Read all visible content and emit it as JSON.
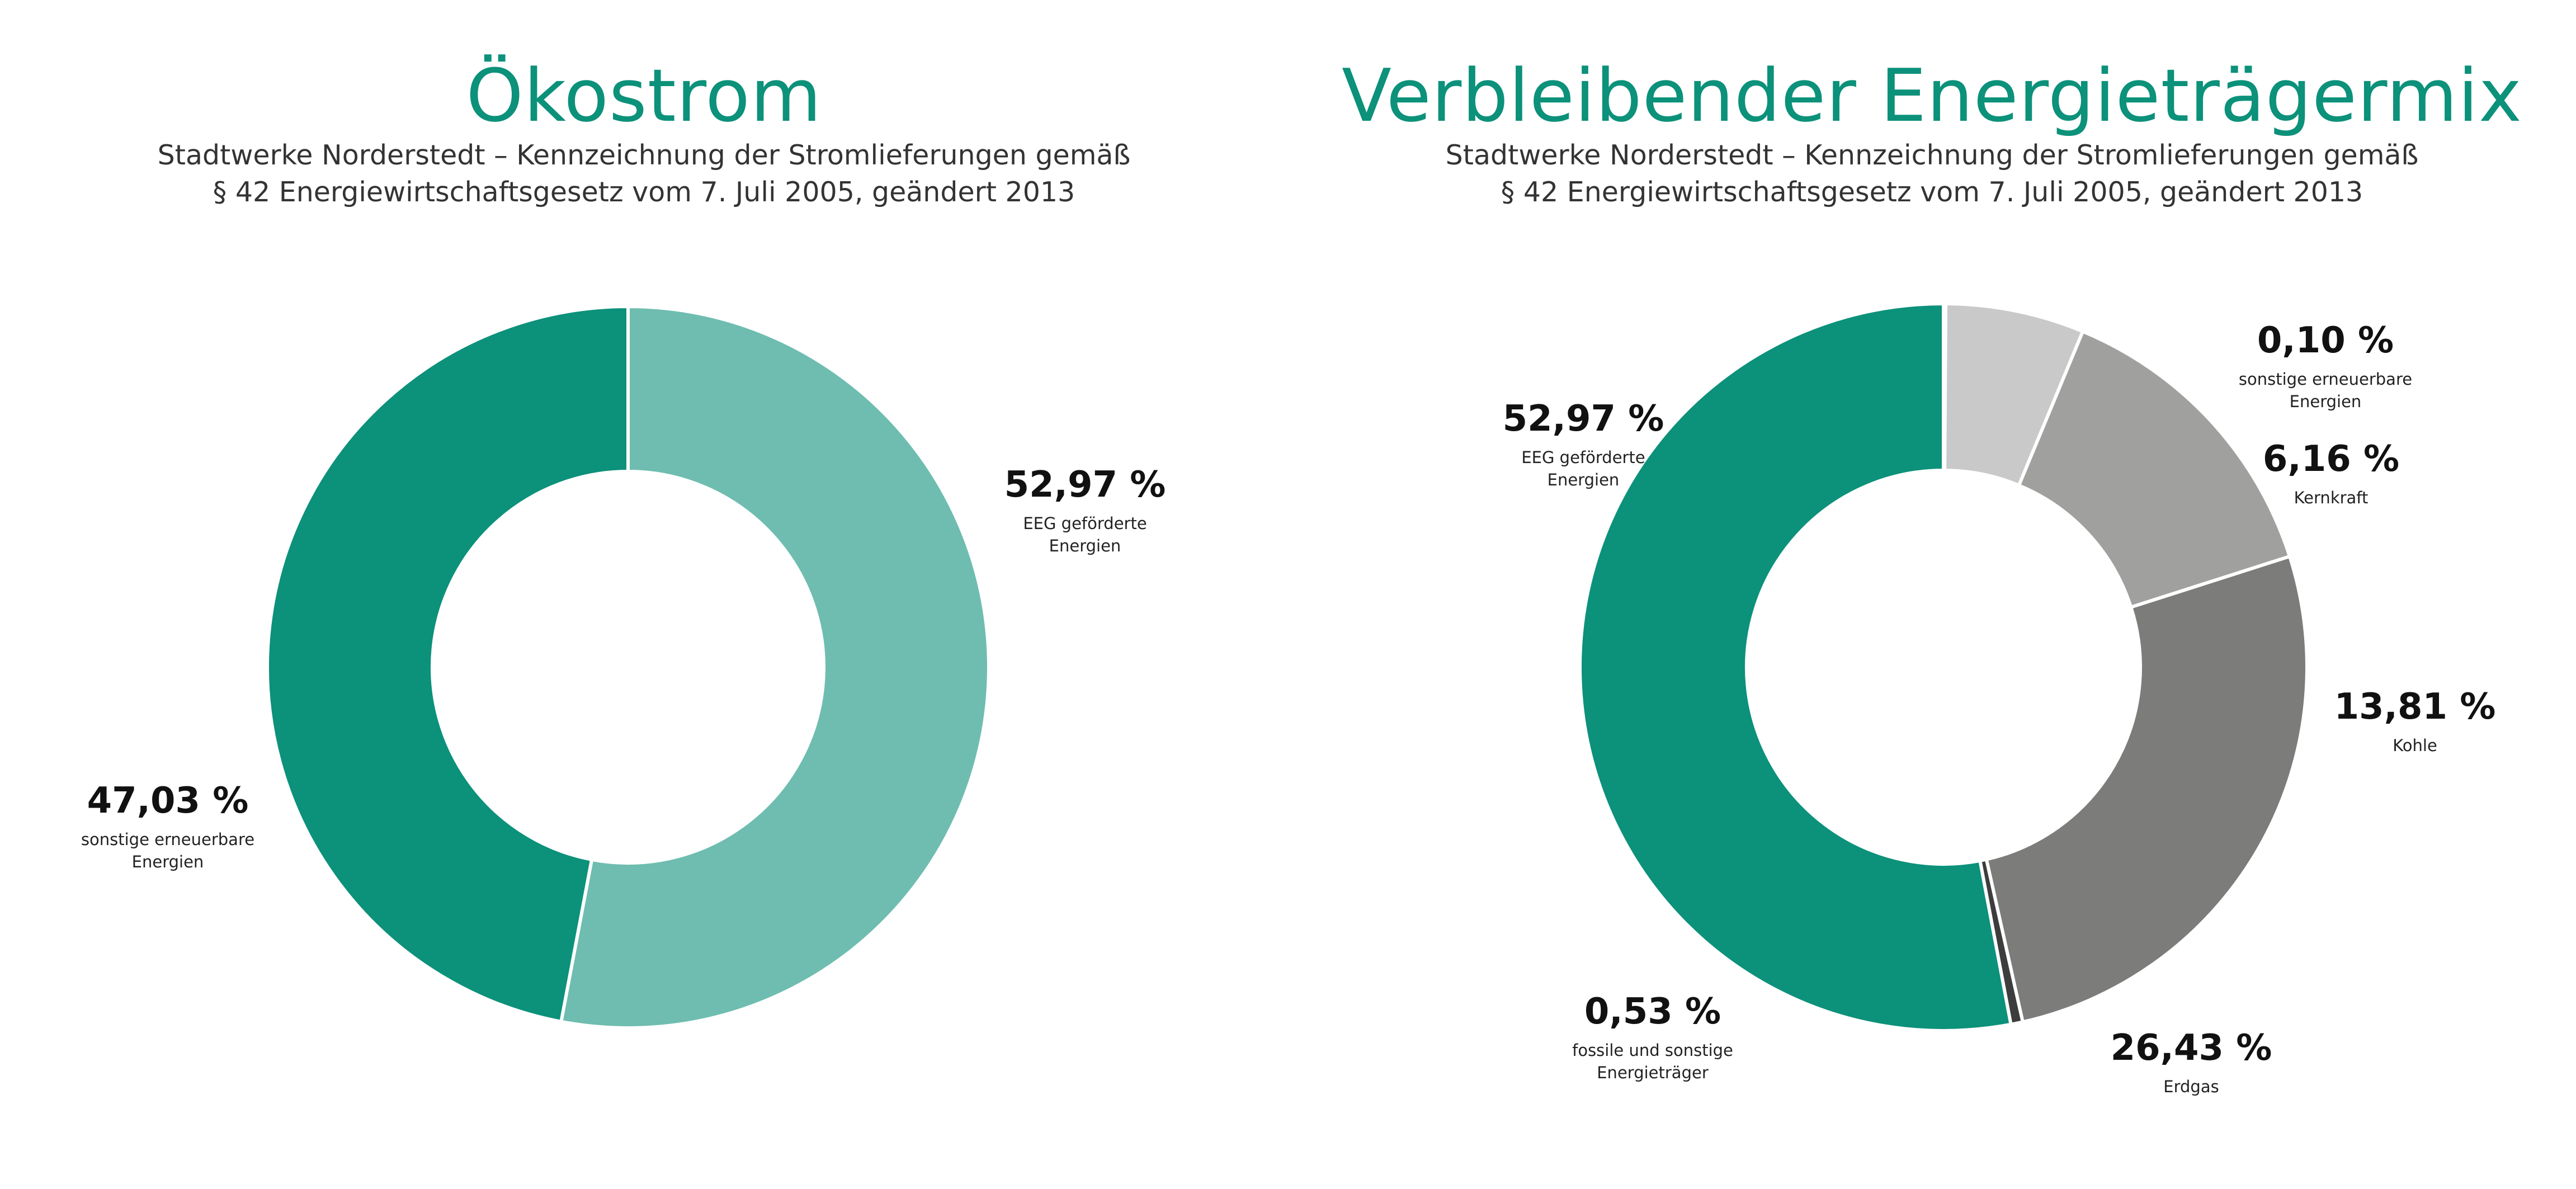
{
  "chart_data": [
    {
      "type": "pie",
      "title": "Ökostrom",
      "subtitle": [
        "Stadtwerke Norderstedt – Kennzeichnung der Stromlieferungen gemäß",
        "§ 42 Energiewirtschaftsgesetz vom 7. Juli 2005, geändert 2013"
      ],
      "slices": [
        {
          "value": 52.97,
          "value_label": "52,97 %",
          "label": [
            "EEG geförderte",
            "Energien"
          ],
          "color": "#6ebdb0"
        },
        {
          "value": 47.03,
          "value_label": "47,03 %",
          "label": [
            "sonstige erneuerbare",
            "Energien"
          ],
          "color": "#0c917a"
        }
      ]
    },
    {
      "type": "pie",
      "title": "Verbleibender Energieträgermix",
      "subtitle": [
        "Stadtwerke Norderstedt – Kennzeichnung der Stromlieferungen gemäß",
        "§ 42 Energiewirtschaftsgesetz vom 7. Juli 2005, geändert 2013"
      ],
      "slices": [
        {
          "value": 0.1,
          "value_label": "0,10 %",
          "label": [
            "sonstige erneuerbare",
            "Energien"
          ],
          "color": "#6ebdb0"
        },
        {
          "value": 6.16,
          "value_label": "6,16 %",
          "label": [
            "Kernkraft"
          ],
          "color": "#c9c9c9"
        },
        {
          "value": 13.81,
          "value_label": "13,81 %",
          "label": [
            "Kohle"
          ],
          "color": "#a0a09f"
        },
        {
          "value": 26.43,
          "value_label": "26,43 %",
          "label": [
            "Erdgas"
          ],
          "color": "#7c7c7b"
        },
        {
          "value": 0.53,
          "value_label": "0,53 %",
          "label": [
            "fossile und sonstige",
            "Energieträger"
          ],
          "color": "#3d3d3d"
        },
        {
          "value": 52.97,
          "value_label": "52,97 %",
          "label": [
            "EEG geförderte",
            "Energien"
          ],
          "color": "#0c917a"
        }
      ]
    }
  ]
}
